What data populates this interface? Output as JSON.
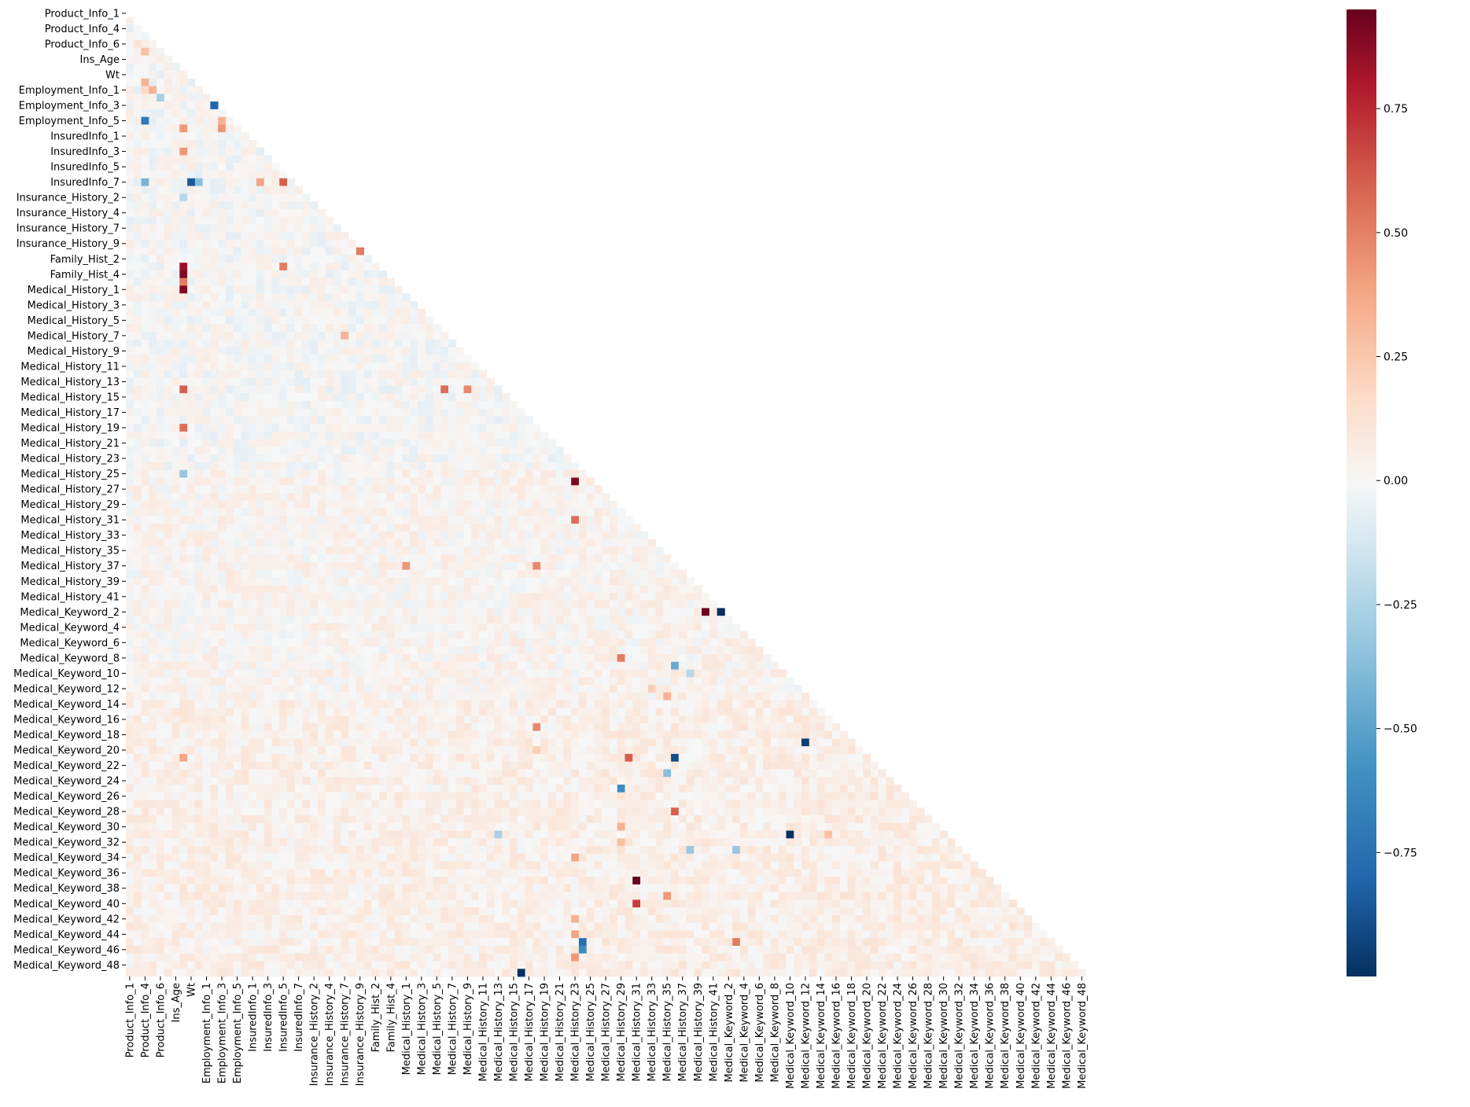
{
  "chart_data": {
    "type": "heatmap",
    "subtype": "correlation matrix, lower triangle (mask upper)",
    "title": "",
    "xlabel": "",
    "ylabel": "",
    "colormap": "RdBu_r",
    "colors": {
      "low": "#053061",
      "mid": "#f7f7f7",
      "high": "#67001f"
    },
    "value_range": [
      -1.0,
      0.95
    ],
    "colorbar": {
      "ticks": [
        0.75,
        0.5,
        0.25,
        0.0,
        -0.25,
        -0.5,
        -0.75
      ],
      "tick_labels": [
        "0.75",
        "0.50",
        "0.25",
        "0.00",
        "−0.25",
        "−0.50",
        "−0.75"
      ]
    },
    "x_tick_labels": [
      "Product_Info_1",
      "Product_Info_4",
      "Product_Info_6",
      "Ins_Age",
      "Wt",
      "Employment_Info_1",
      "Employment_Info_3",
      "Employment_Info_5",
      "InsuredInfo_1",
      "InsuredInfo_3",
      "InsuredInfo_5",
      "InsuredInfo_7",
      "Insurance_History_2",
      "Insurance_History_4",
      "Insurance_History_7",
      "Insurance_History_9",
      "Family_Hist_2",
      "Family_Hist_4",
      "Medical_History_1",
      "Medical_History_3",
      "Medical_History_5",
      "Medical_History_7",
      "Medical_History_9",
      "Medical_History_11",
      "Medical_History_13",
      "Medical_History_15",
      "Medical_History_17",
      "Medical_History_19",
      "Medical_History_21",
      "Medical_History_23",
      "Medical_History_25",
      "Medical_History_27",
      "Medical_History_29",
      "Medical_History_31",
      "Medical_History_33",
      "Medical_History_35",
      "Medical_History_37",
      "Medical_History_39",
      "Medical_History_41",
      "Medical_Keyword_2",
      "Medical_Keyword_4",
      "Medical_Keyword_6",
      "Medical_Keyword_8",
      "Medical_Keyword_10",
      "Medical_Keyword_12",
      "Medical_Keyword_14",
      "Medical_Keyword_16",
      "Medical_Keyword_18",
      "Medical_Keyword_20",
      "Medical_Keyword_22",
      "Medical_Keyword_24",
      "Medical_Keyword_26",
      "Medical_Keyword_28",
      "Medical_Keyword_30",
      "Medical_Keyword_32",
      "Medical_Keyword_34",
      "Medical_Keyword_36",
      "Medical_Keyword_38",
      "Medical_Keyword_40",
      "Medical_Keyword_42",
      "Medical_Keyword_44",
      "Medical_Keyword_46",
      "Medical_Keyword_48"
    ],
    "y_tick_labels": [
      "Product_Info_1",
      "Product_Info_4",
      "Product_Info_6",
      "Ins_Age",
      "Wt",
      "Employment_Info_1",
      "Employment_Info_3",
      "Employment_Info_5",
      "InsuredInfo_1",
      "InsuredInfo_3",
      "InsuredInfo_5",
      "InsuredInfo_7",
      "Insurance_History_2",
      "Insurance_History_4",
      "Insurance_History_7",
      "Insurance_History_9",
      "Family_Hist_2",
      "Family_Hist_4",
      "Medical_History_1",
      "Medical_History_3",
      "Medical_History_5",
      "Medical_History_7",
      "Medical_History_9",
      "Medical_History_11",
      "Medical_History_13",
      "Medical_History_15",
      "Medical_History_17",
      "Medical_History_19",
      "Medical_History_21",
      "Medical_History_23",
      "Medical_History_25",
      "Medical_History_27",
      "Medical_History_29",
      "Medical_History_31",
      "Medical_History_33",
      "Medical_History_35",
      "Medical_History_37",
      "Medical_History_39",
      "Medical_History_41",
      "Medical_Keyword_2",
      "Medical_Keyword_4",
      "Medical_Keyword_6",
      "Medical_Keyword_8",
      "Medical_Keyword_10",
      "Medical_Keyword_12",
      "Medical_Keyword_14",
      "Medical_Keyword_16",
      "Medical_Keyword_18",
      "Medical_Keyword_20",
      "Medical_Keyword_22",
      "Medical_Keyword_24",
      "Medical_Keyword_26",
      "Medical_Keyword_28",
      "Medical_Keyword_30",
      "Medical_Keyword_32",
      "Medical_Keyword_34",
      "Medical_Keyword_36",
      "Medical_Keyword_38",
      "Medical_Keyword_40",
      "Medical_Keyword_42",
      "Medical_Keyword_44",
      "Medical_Keyword_46",
      "Medical_Keyword_48"
    ],
    "notes_cells_by_label_position": "cells listed as [row_index, col_index, value] on the full 126-variable grid (2 grid steps per tick label)",
    "grid_size": 126,
    "background_value": 0.0,
    "background_values_by_row": [
      [
        0,
        0.0
      ],
      [
        60,
        0.02
      ],
      [
        90,
        0.04
      ]
    ],
    "cells": [
      [
        4,
        1,
        0.1
      ],
      [
        5,
        2,
        0.25
      ],
      [
        6,
        6,
        0.2
      ],
      [
        7,
        7,
        0.6
      ],
      [
        8,
        8,
        0.85
      ],
      [
        9,
        2,
        0.3
      ],
      [
        10,
        2,
        0.15
      ],
      [
        10,
        3,
        0.3
      ],
      [
        11,
        4,
        -0.25
      ],
      [
        12,
        11,
        -0.8
      ],
      [
        14,
        2,
        -0.7
      ],
      [
        15,
        7,
        0.4
      ],
      [
        14,
        12,
        0.3
      ],
      [
        15,
        12,
        0.4
      ],
      [
        18,
        7,
        0.4
      ],
      [
        22,
        2,
        -0.4
      ],
      [
        22,
        8,
        -0.85
      ],
      [
        22,
        9,
        -0.35
      ],
      [
        22,
        17,
        0.35
      ],
      [
        22,
        20,
        0.6
      ],
      [
        24,
        7,
        -0.2
      ],
      [
        25,
        30,
        -0.6
      ],
      [
        26,
        30,
        0.55
      ],
      [
        27,
        32,
        -1.0
      ],
      [
        28,
        30,
        0.5
      ],
      [
        29,
        32,
        -1.0
      ],
      [
        29,
        33,
        0.85
      ],
      [
        30,
        30,
        0.95
      ],
      [
        30,
        35,
        0.85
      ],
      [
        31,
        30,
        0.5
      ],
      [
        31,
        32,
        -1.0
      ],
      [
        31,
        33,
        0.9
      ],
      [
        33,
        7,
        0.85
      ],
      [
        33,
        20,
        0.5
      ],
      [
        34,
        7,
        0.9
      ],
      [
        35,
        7,
        0.5
      ],
      [
        35,
        40,
        0.3
      ],
      [
        35,
        43,
        0.35
      ],
      [
        35,
        44,
        0.4
      ],
      [
        36,
        7,
        0.9
      ],
      [
        36,
        41,
        0.95
      ],
      [
        36,
        42,
        0.5
      ],
      [
        42,
        28,
        0.3
      ],
      [
        46,
        55,
        -0.4
      ],
      [
        49,
        7,
        0.6
      ],
      [
        49,
        41,
        0.55
      ],
      [
        49,
        44,
        0.45
      ],
      [
        51,
        56,
        -0.65
      ],
      [
        51,
        57,
        0.35
      ],
      [
        52,
        58,
        0.7
      ],
      [
        54,
        7,
        0.55
      ],
      [
        60,
        7,
        -0.3
      ],
      [
        61,
        58,
        0.9
      ],
      [
        61,
        63,
        0.55
      ],
      [
        62,
        77,
        -1.0
      ],
      [
        66,
        58,
        0.55
      ],
      [
        68,
        74,
        0.35
      ],
      [
        72,
        36,
        0.4
      ],
      [
        72,
        53,
        0.45
      ],
      [
        78,
        75,
        0.95
      ],
      [
        78,
        77,
        -1.0
      ],
      [
        80,
        84,
        -0.2
      ],
      [
        82,
        91,
        -0.15
      ],
      [
        84,
        64,
        0.5
      ],
      [
        85,
        71,
        -0.45
      ],
      [
        86,
        73,
        -0.2
      ],
      [
        86,
        92,
        -0.7
      ],
      [
        88,
        68,
        0.2
      ],
      [
        89,
        70,
        0.3
      ],
      [
        93,
        53,
        0.45
      ],
      [
        95,
        88,
        -0.95
      ],
      [
        96,
        53,
        0.2
      ],
      [
        97,
        7,
        0.35
      ],
      [
        97,
        71,
        -0.9
      ],
      [
        97,
        65,
        0.6
      ],
      [
        99,
        70,
        -0.35
      ],
      [
        101,
        64,
        -0.6
      ],
      [
        104,
        71,
        0.6
      ],
      [
        106,
        64,
        0.3
      ],
      [
        107,
        86,
        -1.0
      ],
      [
        107,
        91,
        0.25
      ],
      [
        107,
        48,
        -0.25
      ],
      [
        108,
        64,
        0.25
      ],
      [
        109,
        73,
        -0.3
      ],
      [
        109,
        79,
        -0.3
      ],
      [
        110,
        58,
        0.35
      ],
      [
        113,
        66,
        0.95
      ],
      [
        115,
        70,
        0.4
      ],
      [
        116,
        66,
        0.7
      ],
      [
        118,
        58,
        0.3
      ],
      [
        120,
        58,
        0.35
      ],
      [
        121,
        59,
        -0.75
      ],
      [
        121,
        79,
        0.5
      ],
      [
        122,
        59,
        -0.6
      ],
      [
        123,
        58,
        0.4
      ],
      [
        125,
        51,
        -1.0
      ],
      [
        126,
        3,
        0.25
      ],
      [
        126,
        5,
        -0.4
      ],
      [
        126,
        6,
        -0.4
      ]
    ]
  }
}
